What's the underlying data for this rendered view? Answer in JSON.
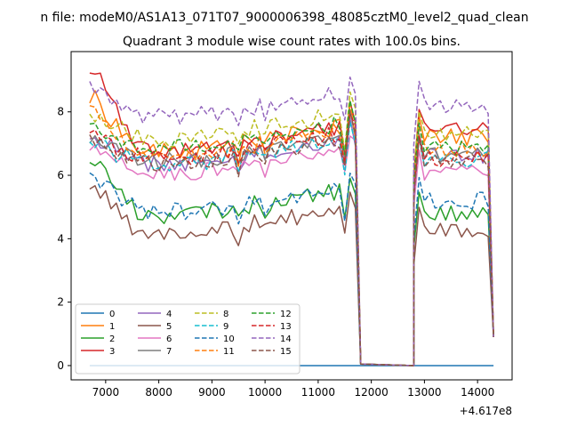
{
  "chart_data": {
    "type": "line",
    "suptitle": "n file: modeM0/AS1A13_071T07_9000006398_48085cztM0_level2_quad_clean",
    "title": "Quadrant 3 module wise count rates with 100.0s bins.",
    "xlabel": "",
    "ylabel": "",
    "x_offset_label": "+4.617e8",
    "xlim": [
      6350,
      14650
    ],
    "ylim": [
      -0.45,
      9.9
    ],
    "x_ticks": [
      7000,
      8000,
      9000,
      10000,
      11000,
      12000,
      13000,
      14000
    ],
    "x_tick_labels": [
      "7000",
      "8000",
      "9000",
      "10000",
      "11000",
      "12000",
      "13000",
      "14000"
    ],
    "y_ticks": [
      0,
      2,
      4,
      6,
      8
    ],
    "y_tick_labels": [
      "0",
      "2",
      "4",
      "6",
      "8"
    ],
    "grid": false,
    "legend_position": "lower-left",
    "legend_columns": 4,
    "x_range_seg1": [
      6700,
      11700
    ],
    "x_range_seg2": [
      12800,
      14300
    ],
    "bin_seconds": 100,
    "series": [
      {
        "name": "0",
        "color": "#1f77b4",
        "dash": "solid",
        "level": 0.0,
        "flat": true
      },
      {
        "name": "1",
        "color": "#ff7f0e",
        "dash": "solid",
        "level": 7.0,
        "start": 8.4,
        "end": 7.2
      },
      {
        "name": "2",
        "color": "#2ca02c",
        "dash": "solid",
        "level": 5.0,
        "start": 6.5,
        "end": 4.8
      },
      {
        "name": "3",
        "color": "#d62728",
        "dash": "solid",
        "level": 7.0,
        "start": 9.3,
        "end": 7.4
      },
      {
        "name": "4",
        "color": "#9467bd",
        "dash": "solid",
        "level": 6.6,
        "start": 7.2,
        "end": 6.6
      },
      {
        "name": "5",
        "color": "#8c564b",
        "dash": "solid",
        "level": 4.4,
        "start": 5.6,
        "end": 4.3
      },
      {
        "name": "6",
        "color": "#e377c2",
        "dash": "solid",
        "level": 6.3,
        "start": 6.8,
        "end": 6.1
      },
      {
        "name": "7",
        "color": "#7f7f7f",
        "dash": "solid",
        "level": 6.7,
        "start": 7.0,
        "end": 6.6
      },
      {
        "name": "8",
        "color": "#bcbd22",
        "dash": "dashed",
        "level": 7.4,
        "start": 7.9,
        "end": 7.3
      },
      {
        "name": "9",
        "color": "#17becf",
        "dash": "dashed",
        "level": 6.6,
        "start": 7.0,
        "end": 6.5
      },
      {
        "name": "10",
        "color": "#1f77b4",
        "dash": "dashed",
        "level": 5.1,
        "start": 6.0,
        "end": 5.2
      },
      {
        "name": "11",
        "color": "#ff7f0e",
        "dash": "dashed",
        "level": 6.9,
        "start": 8.1,
        "end": 6.8
      },
      {
        "name": "12",
        "color": "#2ca02c",
        "dash": "dashed",
        "level": 7.1,
        "start": 7.5,
        "end": 6.9
      },
      {
        "name": "13",
        "color": "#d62728",
        "dash": "dashed",
        "level": 6.8,
        "start": 7.2,
        "end": 6.5
      },
      {
        "name": "14",
        "color": "#9467bd",
        "dash": "dashed",
        "level": 8.1,
        "start": 8.8,
        "end": 8.2
      },
      {
        "name": "15",
        "color": "#8c564b",
        "dash": "dashed",
        "level": 6.6,
        "start": 7.1,
        "end": 6.4
      }
    ]
  }
}
